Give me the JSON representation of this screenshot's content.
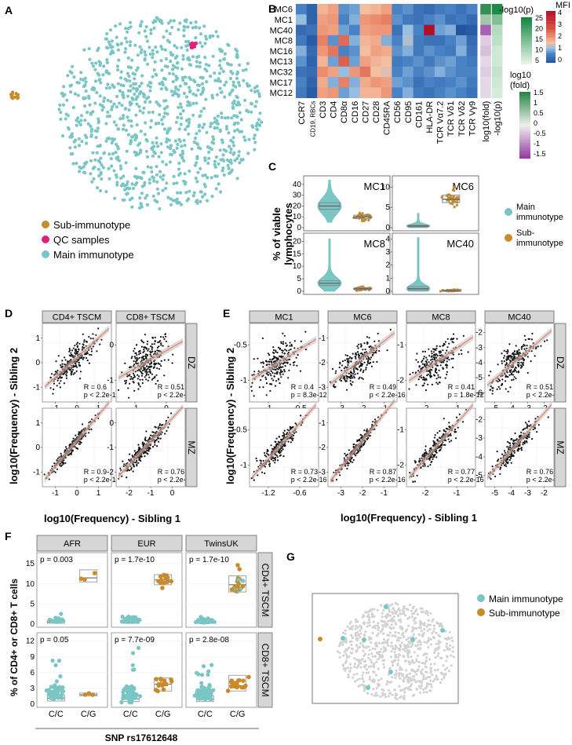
{
  "panel_letters": {
    "A": "A",
    "B": "B",
    "C": "C",
    "D": "D",
    "E": "E",
    "F": "F",
    "G": "G"
  },
  "colors": {
    "main": "#79c6c4",
    "sub": "#c98a2b",
    "qc": "#e0217a",
    "grey": "#cfcfcf",
    "strip": "#d6d6d6",
    "fit": "#e8826c"
  },
  "panelA": {
    "legend": [
      "Sub-immunotype",
      "QC samples",
      "Main immunotype"
    ]
  },
  "panelB": {
    "rows": [
      "MC6",
      "MC1",
      "MC40",
      "MC8",
      "MC16",
      "MC13",
      "MC32",
      "MC17",
      "MC12"
    ],
    "columns": [
      "CCR7",
      "CD19, RBCs",
      "CD3",
      "CD4",
      "CD8α",
      "CD16",
      "CD27",
      "CD28",
      "CD45RA",
      "CD56",
      "CD95",
      "CD161",
      "HLA-DR",
      "TCR Vα7.2",
      "TCR Vδ1",
      "TCR Vδ2",
      "TCR Vγ9",
      "log10(fold)",
      "-log10(p)"
    ],
    "heat": [
      [
        -0.6,
        -1.0,
        0.3,
        0.5,
        -0.5,
        -0.4,
        0.2,
        0.3,
        0.5,
        -0.6,
        -0.5,
        -0.8,
        -0.9,
        -0.7,
        -0.6,
        -0.8,
        -0.6
      ],
      [
        -0.2,
        -1.0,
        0.5,
        0.6,
        -0.6,
        -0.3,
        0.6,
        0.7,
        0.8,
        -0.5,
        -0.7,
        -0.8,
        -0.6,
        -0.5,
        -0.8,
        -0.7,
        -0.9
      ],
      [
        -0.9,
        -0.8,
        0.6,
        0.5,
        -0.4,
        -0.6,
        0.5,
        0.6,
        0.6,
        -0.8,
        -0.2,
        -0.6,
        2.5,
        -0.4,
        -0.3,
        -1.2,
        -1.1
      ],
      [
        -0.7,
        -1.1,
        0.8,
        -0.5,
        1.0,
        -0.3,
        0.3,
        0.4,
        -0.3,
        -0.6,
        -0.1,
        -0.7,
        -0.8,
        -0.8,
        -0.6,
        -0.4,
        -0.9
      ],
      [
        -0.3,
        -0.9,
        0.6,
        0.9,
        -0.6,
        -0.5,
        0.2,
        0.5,
        0.4,
        -0.5,
        -0.3,
        -0.7,
        -0.5,
        -0.6,
        -0.7,
        -0.3,
        -0.8
      ],
      [
        -0.5,
        -1.0,
        0.3,
        -0.4,
        1.1,
        -0.4,
        0.5,
        0.3,
        0.2,
        -0.7,
        -0.6,
        -0.5,
        -0.7,
        -0.5,
        -0.4,
        -0.6,
        -0.7
      ],
      [
        -0.8,
        -0.9,
        0.7,
        0.5,
        -0.2,
        0.6,
        0.9,
        0.2,
        0.1,
        -0.6,
        -0.4,
        -0.6,
        -0.5,
        -0.3,
        -0.5,
        -0.6,
        -0.6
      ],
      [
        -0.6,
        -1.0,
        0.4,
        -0.3,
        0.8,
        -0.3,
        0.4,
        0.6,
        0.5,
        -0.4,
        -0.5,
        -0.8,
        -0.6,
        -0.7,
        -0.6,
        -0.5,
        -0.7
      ],
      [
        -0.7,
        -1.1,
        0.5,
        0.6,
        -0.4,
        -0.2,
        0.3,
        0.3,
        0.6,
        -0.6,
        -0.3,
        -0.7,
        -0.8,
        -0.6,
        -0.5,
        -0.6,
        -0.8
      ]
    ],
    "fold": [
      1.4,
      0.6,
      -1.2,
      -0.3,
      -0.4,
      -0.2,
      -0.3,
      -0.2,
      -0.2
    ],
    "neglogp": [
      24,
      12,
      6,
      5,
      3,
      3,
      4,
      3,
      2
    ],
    "legend_p": {
      "title": "-log10(p)",
      "ticks": [
        "25",
        "20",
        "15",
        "10",
        "5"
      ]
    },
    "legend_mfi": {
      "title": "MFI",
      "ticks": [
        "4",
        "3",
        "2",
        "1",
        "0"
      ]
    },
    "legend_fold": {
      "title1": "log10",
      "title2": "(fold)",
      "ticks": [
        "1.5",
        "1",
        "0.5",
        "0",
        "-0.5",
        "-1",
        "-1.5"
      ]
    }
  },
  "panelC": {
    "ylabel1": "% of viable",
    "ylabel2": "lymphocytes",
    "subplots": [
      {
        "title": "MC1",
        "yticks": [
          "40",
          "30",
          "20",
          "10",
          "0"
        ]
      },
      {
        "title": "MC6",
        "yticks": [
          "10",
          "5",
          "0"
        ]
      },
      {
        "title": "MC8",
        "yticks": [
          "20",
          "15",
          "10",
          "5",
          "0"
        ]
      },
      {
        "title": "MC40",
        "yticks": [
          "4",
          "3",
          "2",
          "1",
          "0"
        ]
      }
    ],
    "legend": [
      "Main immunotype",
      "Sub-immunotype"
    ],
    "legend_lines": [
      [
        "Main",
        "immunotype"
      ],
      [
        "Sub-",
        "immunotype"
      ]
    ]
  },
  "panelD": {
    "ylabel": "log10(Frequency) - Sibling 2",
    "xlabel": "log10(Frequency) - Sibling 1",
    "cols": [
      "CD4+ TSCM",
      "CD8+ TSCM"
    ],
    "rows": [
      "DZ",
      "MZ"
    ],
    "stats": [
      {
        "R": "R = 0.6",
        "p": "p < 2.2e-16"
      },
      {
        "R": "R = 0.51",
        "p": "p < 2.2e-16"
      },
      {
        "R": "R = 0.9",
        "p": "p < 2.2e-16"
      },
      {
        "R": "R = 0.76",
        "p": "p < 2.2e-16"
      }
    ],
    "yticks": [
      [
        "1",
        "0",
        "-1"
      ],
      [
        "0",
        "-1"
      ],
      [
        "1",
        "0",
        "-1"
      ],
      [
        "0",
        "-1",
        "-2"
      ]
    ],
    "xticks": [
      [
        "-1",
        "0",
        "1"
      ],
      [
        "-1",
        "0"
      ],
      [
        "-1",
        "0",
        "1"
      ],
      [
        "-2",
        "-1",
        "0"
      ]
    ]
  },
  "panelE": {
    "ylabel": "log10(Frequency) - Sibling 2",
    "xlabel": "log10(Frequency) - Sibling 1",
    "cols": [
      "MC1",
      "MC6",
      "MC8",
      "MC40"
    ],
    "rows": [
      "DZ",
      "MZ"
    ],
    "stats": [
      {
        "R": "R = 0.4",
        "p": "p = 8.3e-12"
      },
      {
        "R": "R = 0.49",
        "p": "p < 2.2e-16"
      },
      {
        "R": "R = 0.41",
        "p": "p = 1.8e-12"
      },
      {
        "R": "R = 0.51",
        "p": "p < 2.2e-16"
      },
      {
        "R": "R = 0.73",
        "p": "p < 2.2e-16"
      },
      {
        "R": "R = 0.87",
        "p": "p < 2.2e-16"
      },
      {
        "R": "R = 0.77",
        "p": "p < 2.2e-16"
      },
      {
        "R": "R = 0.76",
        "p": "p < 2.2e-16"
      }
    ],
    "yticks": [
      [
        "-0.5",
        "-1"
      ],
      [
        "-1",
        "-2",
        "-3"
      ],
      [
        "-1",
        "-2"
      ],
      [
        "-2",
        "-3",
        "-4",
        "-5",
        "-6"
      ],
      [
        "-0.5",
        "-1"
      ],
      [
        "-1",
        "-2",
        "-3"
      ],
      [
        "-1",
        "-2"
      ],
      [
        "-2",
        "-3",
        "-4",
        "-5"
      ]
    ],
    "xticks": [
      [
        "-1",
        "-0.5"
      ],
      [
        "-3",
        "-2",
        "-1"
      ],
      [
        "-2",
        "-1"
      ],
      [
        "-5",
        "-4",
        "-3",
        "-2"
      ],
      [
        "-1.2",
        "-0.6"
      ],
      [
        "-3",
        "-2",
        "-1"
      ],
      [
        "-2",
        "-1"
      ],
      [
        "-5",
        "-4",
        "-3",
        "-2"
      ]
    ]
  },
  "panelF": {
    "ylabel": "% of CD4+ or CD8+ T cells",
    "xlabel": "SNP rs17612648",
    "cols": [
      "AFR",
      "EUR",
      "TwinsUK"
    ],
    "rows": [
      "CD4+ TSCM",
      "CD8+ TSCM"
    ],
    "pvals": [
      "p = 0.003",
      "p = 1.7e-10",
      "p = 1.7e-10",
      "p = 0.05",
      "p = 7.7e-09",
      "p = 2.8e-08"
    ],
    "yticks_top": [
      "15",
      "10",
      "5",
      "0"
    ],
    "yticks_bot": [
      "12",
      "9",
      "6",
      "3",
      "0"
    ],
    "genotypes": [
      "C/C",
      "C/G"
    ]
  },
  "panelG": {
    "legend": [
      "Main immunotype",
      "Sub-immunotype"
    ]
  }
}
